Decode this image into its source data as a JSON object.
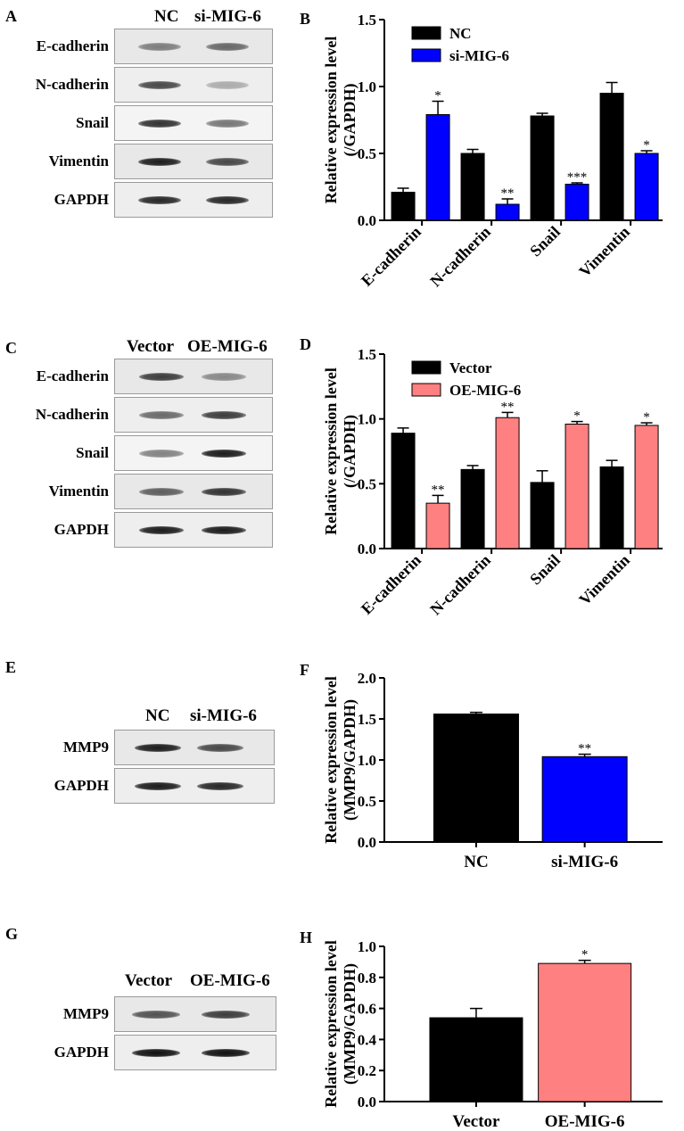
{
  "panels": {
    "A": {
      "letter": "A",
      "lanes": [
        "NC",
        "si-MIG-6"
      ],
      "rows": [
        {
          "label": "E-cadherin",
          "bands": [
            0.5,
            0.6
          ]
        },
        {
          "label": "N-cadherin",
          "bands": [
            0.75,
            0.3
          ]
        },
        {
          "label": "Snail",
          "bands": [
            0.85,
            0.55
          ]
        },
        {
          "label": "Vimentin",
          "bands": [
            0.95,
            0.75
          ]
        },
        {
          "label": "GAPDH",
          "bands": [
            0.9,
            0.9
          ]
        }
      ]
    },
    "C": {
      "letter": "C",
      "lanes": [
        "Vector",
        "OE-MIG-6"
      ],
      "rows": [
        {
          "label": "E-cadherin",
          "bands": [
            0.8,
            0.45
          ]
        },
        {
          "label": "N-cadherin",
          "bands": [
            0.6,
            0.8
          ]
        },
        {
          "label": "Snail",
          "bands": [
            0.5,
            0.95
          ]
        },
        {
          "label": "Vimentin",
          "bands": [
            0.65,
            0.85
          ]
        },
        {
          "label": "GAPDH",
          "bands": [
            0.95,
            0.95
          ]
        }
      ]
    },
    "E": {
      "letter": "E",
      "lanes": [
        "NC",
        "si-MIG-6"
      ],
      "rows": [
        {
          "label": "MMP9",
          "bands": [
            0.95,
            0.75
          ]
        },
        {
          "label": "GAPDH",
          "bands": [
            0.95,
            0.9
          ]
        }
      ]
    },
    "G": {
      "letter": "G",
      "lanes": [
        "Vector",
        "OE-MIG-6"
      ],
      "rows": [
        {
          "label": "MMP9",
          "bands": [
            0.7,
            0.8
          ]
        },
        {
          "label": "GAPDH",
          "bands": [
            1.0,
            1.0
          ]
        }
      ]
    }
  },
  "chart_data": [
    {
      "id": "B",
      "letter": "B",
      "type": "bar",
      "ylabel_lines": [
        "Relative expression level",
        "(/GAPDH)"
      ],
      "ylim": [
        0,
        1.5
      ],
      "yticks": [
        "0.0",
        "0.5",
        "1.0",
        "1.5"
      ],
      "categories": [
        "E-cadherin",
        "N-cadherin",
        "Snail",
        "Vimentin"
      ],
      "legend": "top-left",
      "series": [
        {
          "name": "NC",
          "color": "#000000",
          "values": [
            0.21,
            0.5,
            0.78,
            0.95
          ],
          "errors": [
            0.03,
            0.03,
            0.02,
            0.08
          ],
          "stars": [
            "",
            "",
            "",
            ""
          ]
        },
        {
          "name": "si-MIG-6",
          "color": "#0000ff",
          "values": [
            0.79,
            0.12,
            0.27,
            0.5
          ],
          "errors": [
            0.1,
            0.04,
            0.01,
            0.02
          ],
          "stars": [
            "*",
            "**",
            "***",
            "*"
          ]
        }
      ]
    },
    {
      "id": "D",
      "letter": "D",
      "type": "bar",
      "ylabel_lines": [
        "Relative expression level",
        "(/GAPDH)"
      ],
      "ylim": [
        0,
        1.5
      ],
      "yticks": [
        "0.0",
        "0.5",
        "1.0",
        "1.5"
      ],
      "categories": [
        "E-cadherin",
        "N-cadherin",
        "Snail",
        "Vimentin"
      ],
      "legend": "top-left",
      "series": [
        {
          "name": "Vector",
          "color": "#000000",
          "values": [
            0.89,
            0.61,
            0.51,
            0.63
          ],
          "errors": [
            0.04,
            0.03,
            0.09,
            0.05
          ],
          "stars": [
            "",
            "",
            "",
            ""
          ]
        },
        {
          "name": "OE-MIG-6",
          "color": "#ff8080",
          "values": [
            0.35,
            1.01,
            0.96,
            0.95
          ],
          "errors": [
            0.06,
            0.04,
            0.02,
            0.02
          ],
          "stars": [
            "**",
            "**",
            "*",
            "*"
          ]
        }
      ]
    },
    {
      "id": "F",
      "letter": "F",
      "type": "bar",
      "ylabel_lines": [
        "Relative expression level",
        "(MMP9/GAPDH)"
      ],
      "ylim": [
        0,
        2.0
      ],
      "yticks": [
        "0.0",
        "0.5",
        "1.0",
        "1.5",
        "2.0"
      ],
      "categories": [
        "NC",
        "si-MIG-6"
      ],
      "values": [
        1.56,
        1.04
      ],
      "errors": [
        0.02,
        0.03
      ],
      "colors": [
        "#000000",
        "#0000ff"
      ],
      "stars": [
        "",
        "**"
      ]
    },
    {
      "id": "H",
      "letter": "H",
      "type": "bar",
      "ylabel_lines": [
        "Relative expression level",
        "(MMP9/GAPDH)"
      ],
      "ylim": [
        0,
        1.0
      ],
      "yticks": [
        "0.0",
        "0.2",
        "0.4",
        "0.6",
        "0.8",
        "1.0"
      ],
      "categories": [
        "Vector",
        "OE-MIG-6"
      ],
      "values": [
        0.54,
        0.89
      ],
      "errors": [
        0.06,
        0.02
      ],
      "colors": [
        "#000000",
        "#ff8080"
      ],
      "stars": [
        "",
        "*"
      ]
    }
  ]
}
